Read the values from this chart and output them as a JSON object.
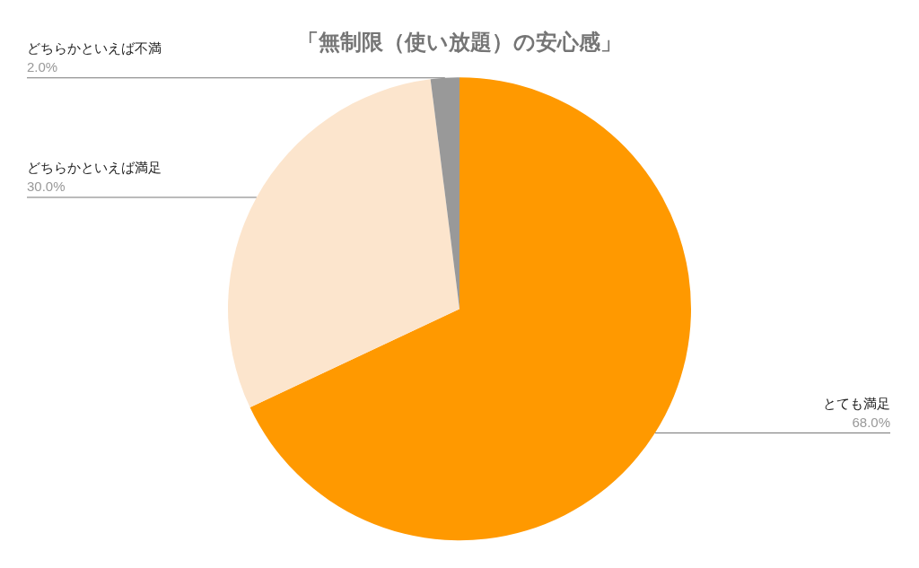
{
  "chart_data": {
    "type": "pie",
    "title": "「無制限（使い放題）の安心感」",
    "categories": [
      "とても満足",
      "どちらかといえば満足",
      "どちらかといえば不満"
    ],
    "values": [
      68.0,
      30.0,
      2.0
    ],
    "colors": [
      "#ff9900",
      "#fce5cd",
      "#999999"
    ],
    "value_labels": [
      "68.0%",
      "30.0%",
      "2.0%"
    ],
    "legend": false
  }
}
